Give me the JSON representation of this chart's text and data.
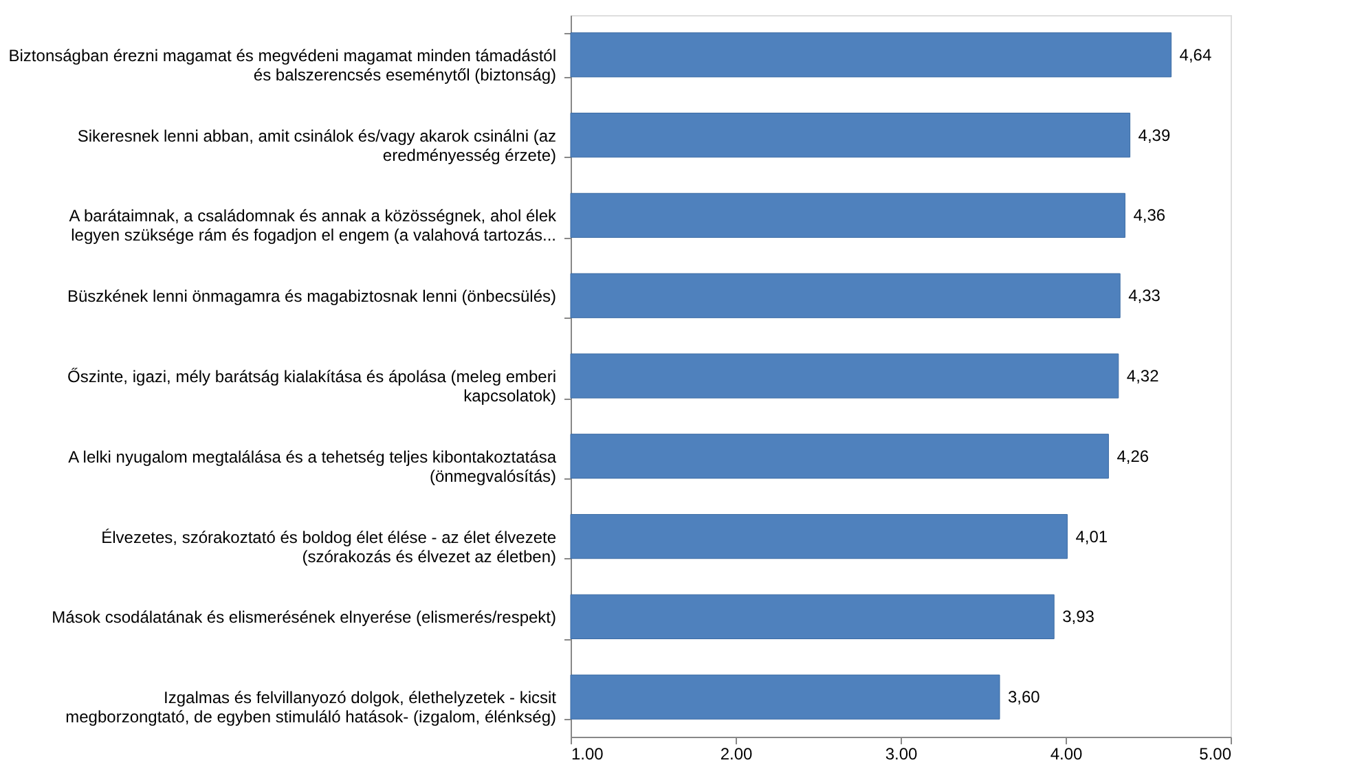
{
  "chart_data": {
    "type": "bar",
    "orientation": "horizontal",
    "categories": [
      "Biztonságban érezni magamat és megvédeni magamat minden támadástól és balszerencsés eseménytől (biztonság)",
      "Sikeresnek lenni abban, amit csinálok és/vagy akarok csinálni (az eredményesség érzete)",
      "A barátaimnak, a családomnak és annak a közösségnek, ahol élek legyen szüksége rám és fogadjon el engem (a valahová tartozás...",
      "Büszkének lenni önmagamra és magabiztosnak lenni (önbecsülés)",
      "Őszinte, igazi, mély barátság kialakítása és ápolása (meleg emberi kapcsolatok)",
      "A lelki nyugalom megtalálása és a tehetség teljes kibontakoztatása (önmegvalósítás)",
      "Élvezetes, szórakoztató és boldog élet élése - az élet élvezete (szórakozás és élvezet az életben)",
      "Mások csodálatának és elismerésének elnyerése (elismerés/respekt)",
      "Izgalmas és felvillanyozó dolgok, élethelyzetek - kicsit megborzongtató, de egyben stimuláló hatások- (izgalom, élénkség)"
    ],
    "values": [
      4.64,
      4.39,
      4.36,
      4.33,
      4.32,
      4.26,
      4.01,
      3.93,
      3.6
    ],
    "value_labels": [
      "4,64",
      "4,39",
      "4,36",
      "4,33",
      "4,32",
      "4,26",
      "4,01",
      "3,93",
      "3,60"
    ],
    "color": "#4f81bd",
    "xlim": [
      1,
      5
    ],
    "xticks": [
      {
        "value": 1,
        "label": "1.00"
      },
      {
        "value": 2,
        "label": "2.00"
      },
      {
        "value": 3,
        "label": "3.00"
      },
      {
        "value": 4,
        "label": "4.00"
      },
      {
        "value": 5,
        "label": "5.00"
      }
    ],
    "grid": false
  }
}
